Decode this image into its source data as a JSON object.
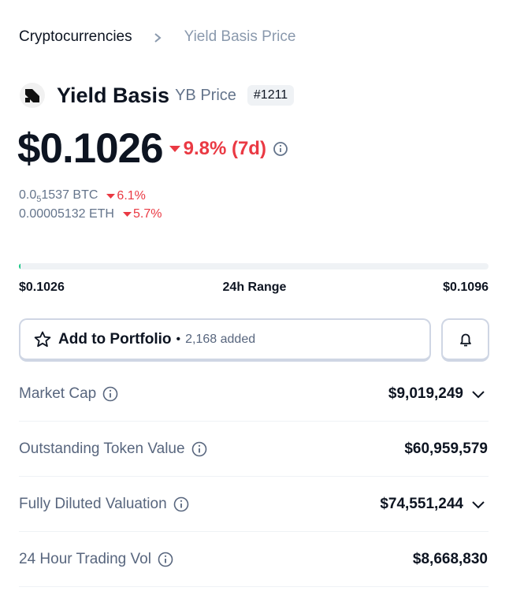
{
  "breadcrumb": {
    "parent": "Cryptocurrencies",
    "current": "Yield Basis Price"
  },
  "coin": {
    "name": "Yield Basis",
    "symbol_label": "YB Price",
    "rank": "#1211"
  },
  "price": {
    "value": "$0.1026",
    "change": "9.8% (7d)"
  },
  "conversions": [
    {
      "prefix": "0.0",
      "subscript": "5",
      "rest": "1537 BTC",
      "change": "6.1%"
    },
    {
      "amount": "0.00005132 ETH",
      "change": "5.7%"
    }
  ],
  "range": {
    "low": "$0.1026",
    "label": "24h Range",
    "high": "$0.1096"
  },
  "portfolio": {
    "button": "Add to Portfolio",
    "separator": "•",
    "added": "2,168 added"
  },
  "stats": [
    {
      "label": "Market Cap",
      "value": "$9,019,249",
      "expandable": true
    },
    {
      "label": "Outstanding Token Value",
      "value": "$60,959,579",
      "expandable": false
    },
    {
      "label": "Fully Diluted Valuation",
      "value": "$74,551,244",
      "expandable": true
    },
    {
      "label": "24 Hour Trading Vol",
      "value": "$8,668,830",
      "expandable": false
    }
  ]
}
